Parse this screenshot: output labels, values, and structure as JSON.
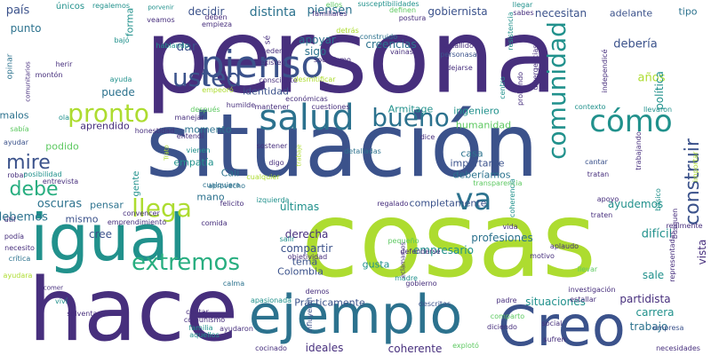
{
  "palette": {
    "purple": "#472f7d",
    "indigo": "#3b528b",
    "blue": "#2c728e",
    "teal": "#21918c",
    "green": "#28ae80",
    "lightgreen": "#5ec962",
    "lime": "#addc30",
    "dark": "#440154"
  },
  "words": [
    {
      "text": "persona"
    },
    {
      "text": "situación"
    },
    {
      "text": "cosas"
    },
    {
      "text": "hace"
    },
    {
      "text": "igual"
    },
    {
      "text": "Creo"
    },
    {
      "text": "ejemplo"
    },
    {
      "text": "pienso"
    },
    {
      "text": "salud"
    },
    {
      "text": "usted"
    },
    {
      "text": "pronto"
    },
    {
      "text": "bueno"
    },
    {
      "text": "cómo"
    },
    {
      "text": "comunidad"
    },
    {
      "text": "mire"
    },
    {
      "text": "debe"
    },
    {
      "text": "llega"
    },
    {
      "text": "va"
    },
    {
      "text": "extremos"
    },
    {
      "text": "construir"
    },
    {
      "text": "país"
    },
    {
      "text": "únicos"
    },
    {
      "text": "regalemos"
    },
    {
      "text": "porvenir"
    },
    {
      "text": "forma"
    },
    {
      "text": "decidir"
    },
    {
      "text": "distinta"
    },
    {
      "text": "piensen"
    },
    {
      "text": "gobiernista"
    },
    {
      "text": "necesitan"
    },
    {
      "text": "adelante"
    },
    {
      "text": "tipo"
    },
    {
      "text": "punto"
    },
    {
      "text": "opinar"
    },
    {
      "text": "montón"
    },
    {
      "text": "herir"
    },
    {
      "text": "bajó"
    },
    {
      "text": "dar"
    },
    {
      "text": "apoyar"
    },
    {
      "text": "creencias"
    },
    {
      "text": "debería"
    },
    {
      "text": "personasa"
    },
    {
      "text": "dejarse"
    },
    {
      "text": "identidad"
    },
    {
      "text": "Armitage"
    },
    {
      "text": "ingeniero"
    },
    {
      "text": "humanidad"
    },
    {
      "text": "años"
    },
    {
      "text": "política"
    },
    {
      "text": "malos"
    },
    {
      "text": "puede"
    },
    {
      "text": "aprendido"
    },
    {
      "text": "momento"
    },
    {
      "text": "podido"
    },
    {
      "text": "empatía"
    },
    {
      "text": "Cali"
    },
    {
      "text": "casa"
    },
    {
      "text": "importante"
    },
    {
      "text": "deberíamos"
    },
    {
      "text": "debemos"
    },
    {
      "text": "oscuras"
    },
    {
      "text": "pensar"
    },
    {
      "text": "mano"
    },
    {
      "text": "últimas"
    },
    {
      "text": "completamente"
    },
    {
      "text": "ayudemos"
    },
    {
      "text": "mismo"
    },
    {
      "text": "derecha"
    },
    {
      "text": "compartir"
    },
    {
      "text": "profesiones"
    },
    {
      "text": "difícil"
    },
    {
      "text": "tema"
    },
    {
      "text": "gusta"
    },
    {
      "text": "Colombia"
    },
    {
      "text": "empresario"
    },
    {
      "text": "sale"
    },
    {
      "text": "Prácticamente"
    },
    {
      "text": "partidista"
    },
    {
      "text": "situaciones"
    },
    {
      "text": "carrera"
    },
    {
      "text": "trabajo"
    },
    {
      "text": "ideales"
    },
    {
      "text": "coherente"
    },
    {
      "text": "cree"
    },
    {
      "text": "gente"
    },
    {
      "text": "sigo"
    },
    {
      "text": "vista"
    },
    {
      "text": "necesito"
    },
    {
      "text": "crítica"
    },
    {
      "text": "ayudara"
    },
    {
      "text": "podía"
    },
    {
      "text": "útil"
    },
    {
      "text": "ayudar"
    },
    {
      "text": "robar"
    },
    {
      "text": "posibilidad"
    },
    {
      "text": "entrevista"
    },
    {
      "text": "honestidad"
    },
    {
      "text": "vienen"
    },
    {
      "text": "digo"
    },
    {
      "text": "cualquiera"
    },
    {
      "text": "aprovecho"
    },
    {
      "text": "sostener"
    },
    {
      "text": "dice"
    },
    {
      "text": "detalladas"
    },
    {
      "text": "tratan"
    },
    {
      "text": "cantar"
    },
    {
      "text": "traten"
    },
    {
      "text": "apoyo"
    },
    {
      "text": "llevar"
    },
    {
      "text": "investigación"
    },
    {
      "text": "estallar"
    },
    {
      "text": "empresa"
    },
    {
      "text": "social"
    },
    {
      "text": "sufren"
    },
    {
      "text": "necesidades"
    },
    {
      "text": "explotó"
    },
    {
      "text": "diciendo"
    },
    {
      "text": "padre"
    },
    {
      "text": "comparto"
    },
    {
      "text": "descritas"
    },
    {
      "text": "influyeron"
    },
    {
      "text": "demos"
    },
    {
      "text": "ayudaron"
    },
    {
      "text": "cocinado"
    },
    {
      "text": "familia"
    },
    {
      "text": "aquellos"
    },
    {
      "text": "contar"
    },
    {
      "text": "comunismo"
    },
    {
      "text": "solventar"
    },
    {
      "text": "viví"
    },
    {
      "text": "comer"
    },
    {
      "text": "apasionada"
    },
    {
      "text": "calma"
    },
    {
      "text": "convencer"
    },
    {
      "text": "emprendimiento"
    },
    {
      "text": "comida"
    },
    {
      "text": "felicito"
    },
    {
      "text": "izquierda"
    },
    {
      "text": "regalado"
    },
    {
      "text": "vida"
    },
    {
      "text": "aplaudo"
    },
    {
      "text": "motivo"
    },
    {
      "text": "gobierno"
    },
    {
      "text": "madre"
    },
    {
      "text": "pequeño"
    },
    {
      "text": "defenderse"
    },
    {
      "text": "salir"
    },
    {
      "text": "objetividad"
    },
    {
      "text": "transparencia"
    },
    {
      "text": "coherencia"
    },
    {
      "text": "básico"
    },
    {
      "text": "importar"
    },
    {
      "text": "representadas"
    },
    {
      "text": "busquen"
    },
    {
      "text": "realmente"
    },
    {
      "text": "llevaron"
    },
    {
      "text": "contexto"
    },
    {
      "text": "centro"
    },
    {
      "text": "probando"
    },
    {
      "text": "divergencias"
    },
    {
      "text": "independicé"
    },
    {
      "text": "resistencia"
    },
    {
      "text": "estallido"
    },
    {
      "text": "construido"
    },
    {
      "text": "vainas"
    },
    {
      "text": "postura"
    },
    {
      "text": "sabes"
    },
    {
      "text": "llegar"
    },
    {
      "text": "definen"
    },
    {
      "text": "familiares"
    },
    {
      "text": "susceptibilidades"
    },
    {
      "text": "ellos"
    },
    {
      "text": "deben"
    },
    {
      "text": "empieza"
    },
    {
      "text": "veamos"
    },
    {
      "text": "hablando"
    },
    {
      "text": "detrás"
    },
    {
      "text": "socialismo"
    },
    {
      "text": "pueden"
    },
    {
      "text": "existen"
    },
    {
      "text": "empeoró"
    },
    {
      "text": "consciente"
    },
    {
      "text": "desmitificar"
    },
    {
      "text": "económicas"
    },
    {
      "text": "humilde"
    },
    {
      "text": "mantener"
    },
    {
      "text": "cuestiones"
    },
    {
      "text": "después"
    },
    {
      "text": "manejar"
    },
    {
      "text": "entendí"
    },
    {
      "text": "ayuda"
    },
    {
      "text": "ola"
    },
    {
      "text": "sabía"
    },
    {
      "text": "comunitarios"
    },
    {
      "text": "sé"
    },
    {
      "text": "Trato"
    },
    {
      "text": "trabaje"
    },
    {
      "text": "trabajando"
    },
    {
      "text": "cualquier"
    },
    {
      "text": "eclamamos"
    }
  ]
}
